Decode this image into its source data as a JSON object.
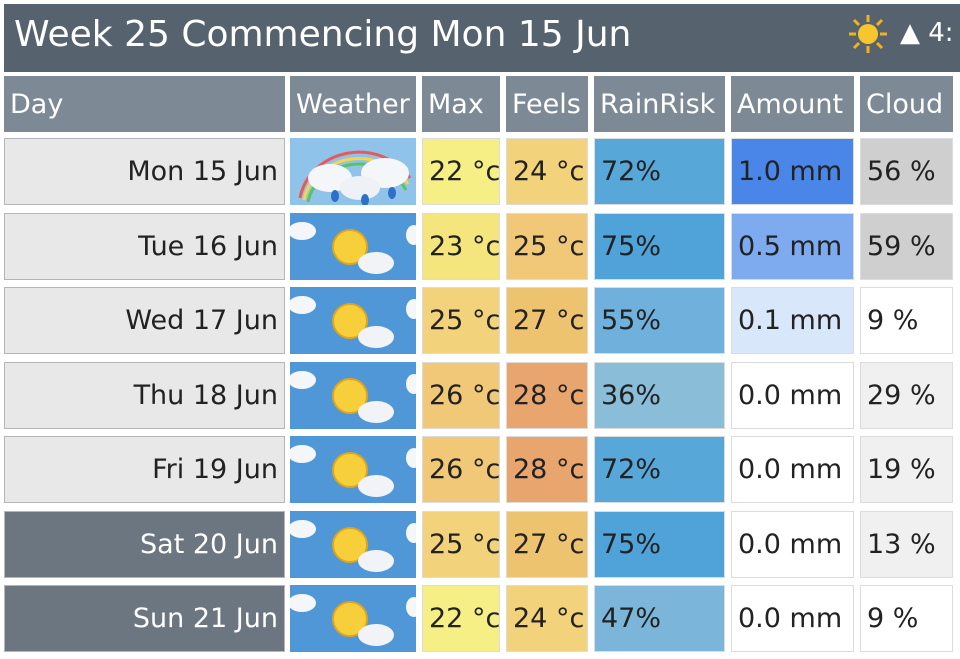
{
  "header": {
    "title": "Week 25 Commencing Mon 15 Jun",
    "status": "▲ 4:"
  },
  "table": {
    "columns": [
      "Day",
      "Weather",
      "Max",
      "Feels",
      "RainRisk",
      "Amount",
      "Cloud"
    ],
    "rows": [
      [
        "Mon 15 Jun",
        "22 °c",
        "24 °c",
        "72%",
        "1.0 mm",
        "56 %"
      ],
      [
        "Tue 16 Jun",
        "23 °c",
        "25 °c",
        "75%",
        "0.5 mm",
        "59 %"
      ],
      [
        "Wed 17 Jun",
        "25 °c",
        "27 °c",
        "55%",
        "0.1 mm",
        "9 %"
      ],
      [
        "Thu 18 Jun",
        "26 °c",
        "28 °c",
        "36%",
        "0.0 mm",
        "29 %"
      ],
      [
        "Fri 19 Jun",
        "26 °c",
        "28 °c",
        "72%",
        "0.0 mm",
        "19 %"
      ],
      [
        "Sat 20 Jun",
        "25 °c",
        "27 °c",
        "75%",
        "0.0 mm",
        "13 %"
      ],
      [
        "Sun 21 Jun",
        "22 °c",
        "24 °c",
        "47%",
        "0.0 mm",
        "9 %"
      ]
    ],
    "cell_colors": [
      [
        "#e8e8e8",
        "#f6ef86",
        "#f2d27a",
        "#58a7d9",
        "#4a86e8",
        "#cfcfcf"
      ],
      [
        "#e8e8e8",
        "#f4e67c",
        "#f0c878",
        "#4fa3d8",
        "#7eaaf0",
        "#cfcfcf"
      ],
      [
        "#e8e8e8",
        "#f2d27a",
        "#eec370",
        "#6fb1dc",
        "#d9e7fb",
        "#ffffff"
      ],
      [
        "#e8e8e8",
        "#f0c878",
        "#e8a66e",
        "#89bdd8",
        "#ffffff",
        "#f0f0f0"
      ],
      [
        "#e8e8e8",
        "#f0c878",
        "#e8a66e",
        "#58a7d9",
        "#ffffff",
        "#f0f0f0"
      ],
      [
        "#6b7680",
        "#f2d27a",
        "#eec370",
        "#4fa3d8",
        "#ffffff",
        "#f0f0f0"
      ],
      [
        "#6b7680",
        "#f6ef86",
        "#f2d27a",
        "#7bb6da",
        "#ffffff",
        "#ffffff"
      ]
    ]
  }
}
